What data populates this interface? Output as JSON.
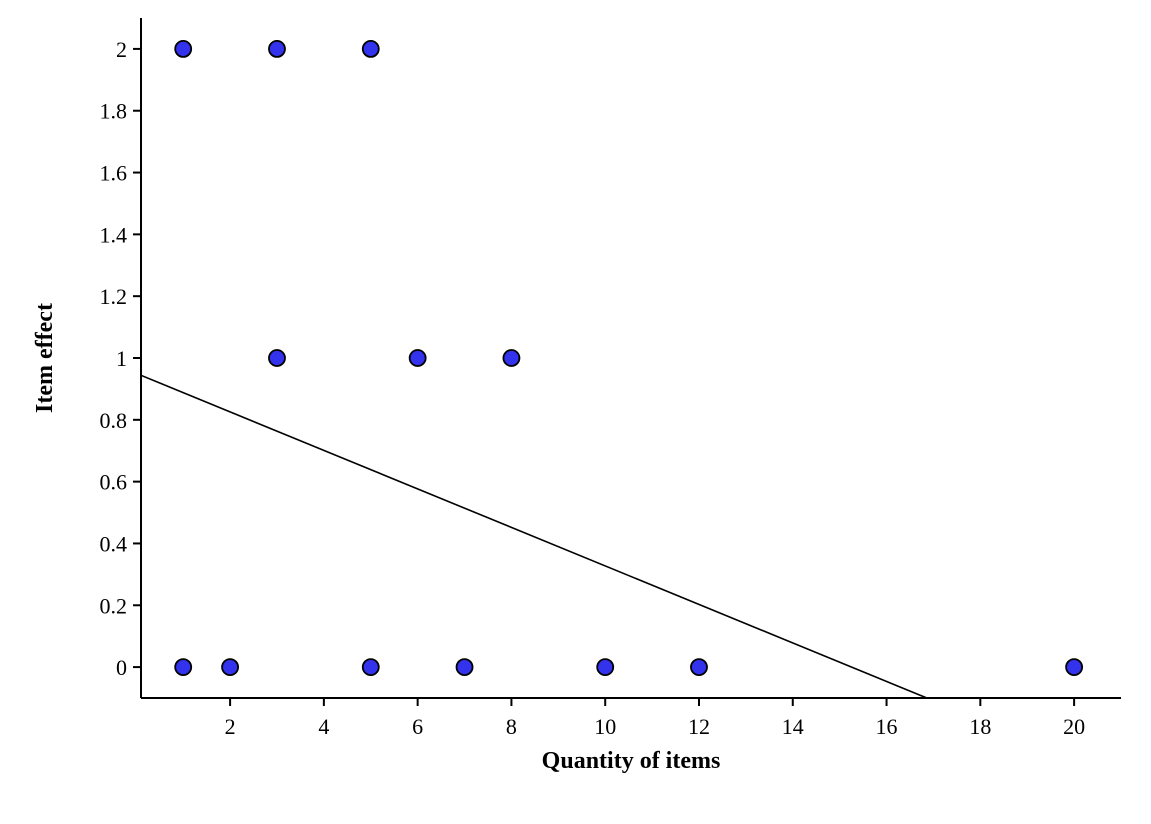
{
  "chart_data": {
    "type": "scatter",
    "xlabel": "Quantity of items",
    "ylabel": "Item effect",
    "xlim": [
      0.1,
      21
    ],
    "ylim": [
      -0.1,
      2.1
    ],
    "x_ticks": [
      2,
      4,
      6,
      8,
      10,
      12,
      14,
      16,
      18,
      20
    ],
    "y_ticks": [
      0,
      0.2,
      0.4,
      0.6,
      0.8,
      1,
      1.2,
      1.4,
      1.6,
      1.8,
      2
    ],
    "x_tick_labels": [
      "2",
      "4",
      "6",
      "8",
      "10",
      "12",
      "14",
      "16",
      "18",
      "20"
    ],
    "y_tick_labels": [
      "0",
      "0.2",
      "0.4",
      "0.6",
      "0.8",
      "1",
      "1.2",
      "1.4",
      "1.6",
      "1.8",
      "2"
    ],
    "points": [
      {
        "x": 1,
        "y": 2
      },
      {
        "x": 3,
        "y": 2
      },
      {
        "x": 5,
        "y": 2
      },
      {
        "x": 3,
        "y": 1
      },
      {
        "x": 6,
        "y": 1
      },
      {
        "x": 8,
        "y": 1
      },
      {
        "x": 1,
        "y": 0
      },
      {
        "x": 2,
        "y": 0
      },
      {
        "x": 5,
        "y": 0
      },
      {
        "x": 7,
        "y": 0
      },
      {
        "x": 10,
        "y": 0
      },
      {
        "x": 12,
        "y": 0
      },
      {
        "x": 20,
        "y": 0
      }
    ],
    "fit_line": {
      "x": [
        0.1,
        16.86
      ],
      "y": [
        0.944,
        -0.1
      ]
    },
    "grid": false,
    "point_color": "#3333ee",
    "point_edge_color": "#000000",
    "line_color": "#000000"
  }
}
